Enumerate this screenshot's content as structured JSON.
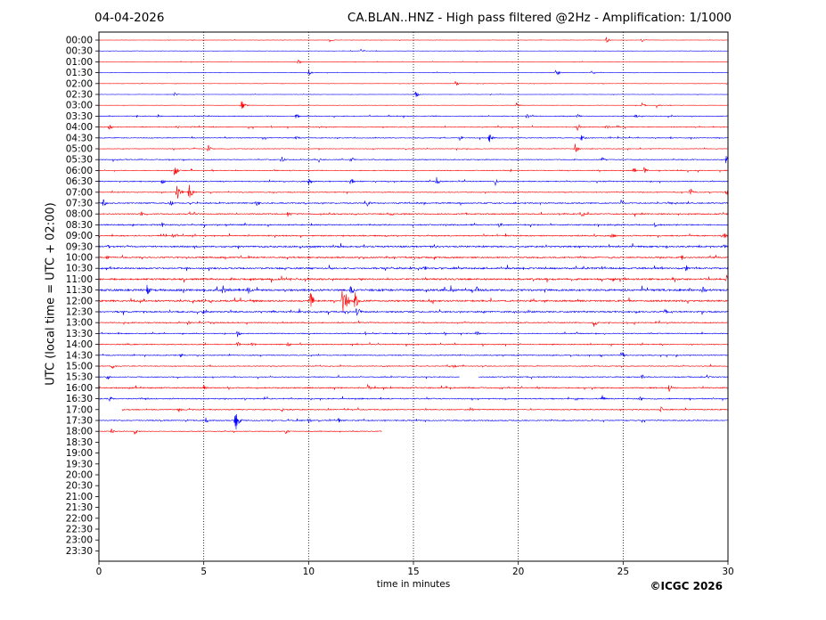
{
  "header": {
    "date": "04-04-2026",
    "title": "CA.BLAN..HNZ - High pass filtered @2Hz - Amplification: 1/1000"
  },
  "footer": {
    "copyright": "©ICGC 2026"
  },
  "chart_data": {
    "type": "line",
    "title": "CA.BLAN..HNZ - High pass filtered @2Hz - Amplification: 1/1000",
    "xlabel": "time in minutes",
    "ylabel": "UTC (local time = UTC + 02:00)",
    "xlim": [
      0,
      30
    ],
    "x_ticks": [
      0,
      5,
      10,
      15,
      20,
      25,
      30
    ],
    "x_gridlines": [
      5,
      10,
      15,
      20,
      25
    ],
    "grid": "vertical dotted",
    "row_labels": [
      "00:00",
      "00:30",
      "01:00",
      "01:30",
      "02:00",
      "02:30",
      "03:00",
      "03:30",
      "04:00",
      "04:30",
      "05:00",
      "05:30",
      "06:00",
      "06:30",
      "07:00",
      "07:30",
      "08:00",
      "08:30",
      "09:00",
      "09:30",
      "10:00",
      "10:30",
      "11:00",
      "11:30",
      "12:00",
      "12:30",
      "13:00",
      "13:30",
      "14:00",
      "14:30",
      "15:00",
      "15:30",
      "16:00",
      "16:30",
      "17:00",
      "17:30",
      "18:00",
      "18:30",
      "19:00",
      "19:30",
      "20:00",
      "20:30",
      "21:00",
      "21:30",
      "22:00",
      "22:30",
      "23:00",
      "23:30"
    ],
    "colors": {
      "even_rows": "#ff0000",
      "odd_rows": "#0000ff"
    },
    "traces": [
      {
        "row": "00:00",
        "start": 0,
        "end": 30,
        "level": 0.3,
        "events": [
          [
            11.0,
            0.4
          ],
          [
            24.2,
            0.5
          ],
          [
            25.9,
            0.5
          ]
        ]
      },
      {
        "row": "00:30",
        "start": 0,
        "end": 30,
        "level": 0.3,
        "events": [
          [
            12.5,
            0.4
          ]
        ]
      },
      {
        "row": "01:00",
        "start": 0,
        "end": 30,
        "level": 0.3,
        "events": [
          [
            9.5,
            0.4
          ]
        ]
      },
      {
        "row": "01:30",
        "start": 0,
        "end": 30,
        "level": 0.4,
        "events": [
          [
            10.0,
            0.5
          ],
          [
            21.8,
            0.7
          ],
          [
            23.5,
            0.4
          ]
        ]
      },
      {
        "row": "02:00",
        "start": 0,
        "end": 30,
        "level": 0.3,
        "events": [
          [
            17.0,
            0.5
          ]
        ]
      },
      {
        "row": "02:30",
        "start": 0,
        "end": 30,
        "level": 0.3,
        "events": [
          [
            3.6,
            0.3
          ],
          [
            15.1,
            0.7
          ]
        ]
      },
      {
        "row": "03:00",
        "start": 0,
        "end": 30,
        "level": 0.3,
        "events": [
          [
            6.8,
            0.9
          ],
          [
            19.9,
            0.4
          ],
          [
            25.9,
            0.4
          ],
          [
            26.6,
            0.4
          ]
        ]
      },
      {
        "row": "03:30",
        "start": 0,
        "end": 30,
        "level": 0.8,
        "events": [
          [
            2.8,
            0.4
          ],
          [
            9.4,
            0.5
          ],
          [
            20.4,
            0.5
          ],
          [
            22.8,
            0.4
          ],
          [
            25.6,
            0.4
          ]
        ]
      },
      {
        "row": "04:00",
        "start": 0,
        "end": 30,
        "level": 0.8,
        "events": [
          [
            0.5,
            0.5
          ],
          [
            3.7,
            0.4
          ],
          [
            22.8,
            0.8
          ],
          [
            24.2,
            0.5
          ]
        ]
      },
      {
        "row": "04:30",
        "start": 0,
        "end": 30,
        "level": 0.8,
        "events": [
          [
            9.4,
            0.5
          ],
          [
            17.2,
            0.6
          ],
          [
            18.6,
            1.0
          ],
          [
            23.0,
            0.6
          ]
        ]
      },
      {
        "row": "05:00",
        "start": 0,
        "end": 30,
        "level": 0.6,
        "events": [
          [
            5.2,
            0.8
          ],
          [
            22.7,
            1.0
          ]
        ]
      },
      {
        "row": "05:30",
        "start": 0,
        "end": 30,
        "level": 0.8,
        "events": [
          [
            8.7,
            0.6
          ],
          [
            10.5,
            0.5
          ],
          [
            12.0,
            0.6
          ],
          [
            24.0,
            0.4
          ],
          [
            29.9,
            0.8
          ]
        ]
      },
      {
        "row": "06:00",
        "start": 0,
        "end": 30,
        "level": 0.8,
        "events": [
          [
            3.6,
            1.2
          ],
          [
            25.5,
            0.6
          ],
          [
            26.0,
            0.6
          ]
        ]
      },
      {
        "row": "06:30",
        "start": 0,
        "end": 30,
        "level": 1.0,
        "events": [
          [
            3.0,
            0.6
          ],
          [
            10.0,
            0.7
          ],
          [
            12.0,
            0.8
          ],
          [
            16.1,
            0.9
          ],
          [
            18.9,
            0.7
          ]
        ]
      },
      {
        "row": "07:00",
        "start": 0,
        "end": 30,
        "level": 0.8,
        "events": [
          [
            3.7,
            2.2
          ],
          [
            4.3,
            1.6
          ],
          [
            28.2,
            0.8
          ],
          [
            29.9,
            0.8
          ]
        ]
      },
      {
        "row": "07:30",
        "start": 0,
        "end": 30,
        "level": 1.2,
        "events": [
          [
            0.2,
            0.8
          ],
          [
            3.4,
            0.6
          ],
          [
            7.5,
            0.5
          ],
          [
            12.8,
            0.6
          ],
          [
            24.9,
            0.5
          ]
        ]
      },
      {
        "row": "08:00",
        "start": 0,
        "end": 30,
        "level": 1.2,
        "events": [
          [
            2.0,
            0.5
          ],
          [
            9.0,
            0.5
          ],
          [
            13.9,
            0.5
          ],
          [
            23.0,
            0.5
          ]
        ]
      },
      {
        "row": "08:30",
        "start": 0,
        "end": 30,
        "level": 1.2,
        "events": [
          [
            3.0,
            0.5
          ],
          [
            19.1,
            0.6
          ],
          [
            26.5,
            0.5
          ]
        ]
      },
      {
        "row": "09:00",
        "start": 0,
        "end": 30,
        "level": 1.2,
        "events": [
          [
            3.5,
            0.5
          ],
          [
            24.5,
            0.5
          ],
          [
            29.8,
            0.6
          ]
        ]
      },
      {
        "row": "09:30",
        "start": 0,
        "end": 30,
        "level": 1.6,
        "events": [
          [
            0.4,
            0.6
          ],
          [
            29.8,
            0.6
          ]
        ]
      },
      {
        "row": "10:00",
        "start": 0,
        "end": 30,
        "level": 1.4,
        "events": [
          [
            0.4,
            0.5
          ],
          [
            27.8,
            0.5
          ]
        ]
      },
      {
        "row": "10:30",
        "start": 0,
        "end": 30,
        "level": 1.6,
        "events": [
          [
            15.5,
            0.6
          ],
          [
            28.0,
            0.6
          ]
        ]
      },
      {
        "row": "11:00",
        "start": 0,
        "end": 30,
        "level": 1.7,
        "events": [
          [
            24.5,
            0.5
          ],
          [
            29.9,
            0.9
          ]
        ]
      },
      {
        "row": "11:30",
        "start": 0,
        "end": 30,
        "level": 2.0,
        "events": [
          [
            2.3,
            1.1
          ],
          [
            5.9,
            0.9
          ],
          [
            7.1,
            0.8
          ],
          [
            12.0,
            0.8
          ],
          [
            18.0,
            0.7
          ],
          [
            28.8,
            0.9
          ]
        ]
      },
      {
        "row": "12:00",
        "start": 0,
        "end": 30,
        "level": 1.7,
        "events": [
          [
            10.1,
            1.6
          ],
          [
            11.6,
            2.4
          ],
          [
            11.8,
            1.5
          ],
          [
            12.2,
            1.8
          ]
        ]
      },
      {
        "row": "12:30",
        "start": 0,
        "end": 30,
        "level": 1.5,
        "events": [
          [
            5.0,
            0.8
          ],
          [
            12.3,
            1.2
          ],
          [
            27.0,
            0.5
          ]
        ]
      },
      {
        "row": "13:00",
        "start": 0,
        "end": 30,
        "level": 1.0,
        "events": [
          [
            4.2,
            0.6
          ],
          [
            23.6,
            0.9
          ]
        ]
      },
      {
        "row": "13:30",
        "start": 0,
        "end": 30,
        "level": 1.0,
        "events": [
          [
            6.6,
            0.6
          ],
          [
            18.0,
            0.5
          ]
        ]
      },
      {
        "row": "14:00",
        "start": 0,
        "end": 30,
        "level": 1.0,
        "events": [
          [
            6.6,
            0.6
          ],
          [
            7.3,
            0.5
          ],
          [
            9.0,
            0.5
          ]
        ]
      },
      {
        "row": "14:30",
        "start": 0,
        "end": 30,
        "level": 0.9,
        "events": [
          [
            3.9,
            0.5
          ],
          [
            24.9,
            1.0
          ]
        ]
      },
      {
        "row": "15:00",
        "start": 0,
        "end": 30,
        "level": 0.8,
        "events": [
          [
            0.6,
            0.6
          ],
          [
            16.9,
            0.5
          ]
        ]
      },
      {
        "row": "15:30",
        "start": 0,
        "end": 17.2,
        "level": 0.8,
        "events": [
          [
            0.4,
            0.5
          ]
        ]
      },
      {
        "row": "15:30",
        "start": 18.1,
        "end": 30,
        "level": 1.0,
        "events": [
          [
            25.9,
            0.5
          ],
          [
            29.0,
            0.5
          ]
        ]
      },
      {
        "row": "16:00",
        "start": 0,
        "end": 30,
        "level": 1.2,
        "events": [
          [
            5.0,
            0.5
          ],
          [
            12.8,
            0.6
          ],
          [
            27.2,
            0.8
          ]
        ]
      },
      {
        "row": "16:30",
        "start": 0,
        "end": 30,
        "level": 1.1,
        "events": [
          [
            0.5,
            0.5
          ],
          [
            24.0,
            0.6
          ],
          [
            25.8,
            0.5
          ]
        ]
      },
      {
        "row": "17:00",
        "start": 1.1,
        "end": 30,
        "level": 1.0,
        "events": [
          [
            3.8,
            0.5
          ],
          [
            8.7,
            0.5
          ],
          [
            17.7,
            0.5
          ],
          [
            26.8,
            0.5
          ]
        ]
      },
      {
        "row": "17:30",
        "start": 0,
        "end": 30,
        "level": 1.0,
        "events": [
          [
            5.1,
            0.5
          ],
          [
            6.5,
            2.4
          ],
          [
            10.0,
            0.6
          ],
          [
            11.4,
            0.5
          ]
        ]
      },
      {
        "row": "18:00",
        "start": 0,
        "end": 13.5,
        "level": 0.7,
        "events": [
          [
            0.6,
            0.5
          ],
          [
            1.7,
            0.5
          ],
          [
            8.9,
            0.5
          ]
        ]
      }
    ]
  }
}
